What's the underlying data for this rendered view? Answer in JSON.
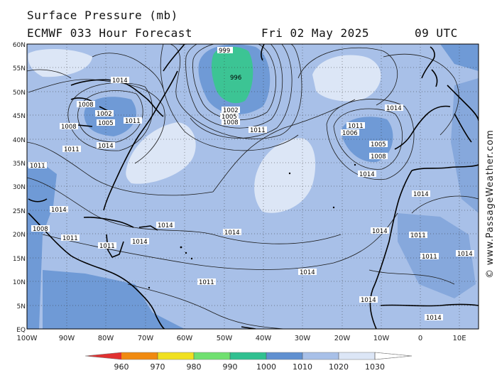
{
  "header": {
    "title": "Surface Pressure (mb)",
    "model": "ECMWF 033 Hour Forecast",
    "date": "Fri 02 May 2025",
    "time": "09 UTC"
  },
  "axes": {
    "lat_labels": [
      "60N",
      "55N",
      "50N",
      "45N",
      "40N",
      "35N",
      "30N",
      "25N",
      "20N",
      "15N",
      "10N",
      "5N",
      "EQ"
    ],
    "lon_labels": [
      "100W",
      "90W",
      "80W",
      "70W",
      "60W",
      "50W",
      "40W",
      "30W",
      "20W",
      "10W",
      "0",
      "10E"
    ]
  },
  "isobars": {
    "low_newfoundland": {
      "center": "996",
      "ring1": "999",
      "ring2": "1002",
      "ring3": "1005",
      "ring4": "1008",
      "ring5": "1011"
    },
    "low_great_lakes": {
      "a": "1002",
      "b": "1005",
      "c": "1008",
      "d": "1008",
      "e": "1011",
      "f": "1014"
    },
    "low_azores": {
      "a": "1005",
      "b": "1008",
      "c": "1011",
      "d": "1006",
      "e": "1014"
    },
    "misc": {
      "a": "1014",
      "b": "1014",
      "c": "1014",
      "d": "1014",
      "e": "1014",
      "f": "1011",
      "g": "1011",
      "h": "1014",
      "i": "1014",
      "j": "1011",
      "k": "1014",
      "l": "1011",
      "m": "1014",
      "n": "1014",
      "o": "1008",
      "p": "1011",
      "q": "1014",
      "r": "1011",
      "s": "1014",
      "t": "1011"
    }
  },
  "legend": {
    "ticks": [
      "960",
      "970",
      "980",
      "990",
      "1000",
      "1010",
      "1020",
      "1030"
    ],
    "colors": [
      "#e03030",
      "#f08a10",
      "#f0e020",
      "#70e070",
      "#30c090",
      "#6090d0",
      "#a8c0e8",
      "#dce6f6"
    ]
  },
  "credit": "© www.PassageWeather.com"
}
